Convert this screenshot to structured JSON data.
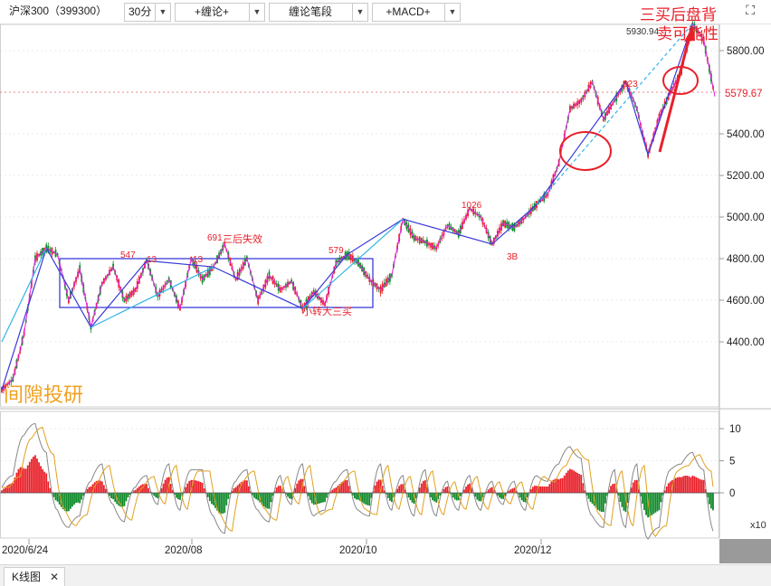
{
  "toolbar": {
    "symbol": "沪深300（399300）",
    "period": "30分",
    "indicator1": "+缠论+",
    "indicator2": "缠论笔段",
    "indicator3": "+MACD+",
    "dropdown_glyph": "▼",
    "expand_glyph": "⛶"
  },
  "tab": {
    "label": "K线图",
    "close": "✕"
  },
  "watermark": "间隙投研",
  "colors": {
    "up": "#e8202a",
    "down": "#0f8a2a",
    "bi": "#e020e0",
    "segment": "#3a3ad8",
    "trend": "#30b4e8",
    "box": "#3b3bdd",
    "annotation": "#e8202a",
    "dif": "#888888",
    "dea": "#e0a020",
    "watermark": "#f0a020"
  },
  "chart_data": [
    {
      "type": "line",
      "name": "price",
      "x_ticks": [
        "2020/6/24",
        "2020/08",
        "2020/10",
        "2020/12"
      ],
      "y_ticks": [
        "4400.00",
        "4600.00",
        "4800.00",
        "5000.00",
        "5200.00",
        "5400.00",
        "5600.00",
        "5800.00"
      ],
      "ylim": [
        4180,
        5960
      ],
      "last_price": "5579.67",
      "series": [
        {
          "values": [
            4170,
            4220,
            4440,
            4800,
            4850,
            4820,
            4600,
            4750,
            4470,
            4680,
            4760,
            4600,
            4650,
            4790,
            4620,
            4700,
            4560,
            4800,
            4700,
            4760,
            4870,
            4700,
            4800,
            4600,
            4720,
            4650,
            4690,
            4560,
            4640,
            4580,
            4780,
            4820,
            4780,
            4700,
            4650,
            4720,
            4990,
            4900,
            4880,
            4850,
            4960,
            4920,
            5040,
            5000,
            4870,
            4970,
            4950,
            5000,
            5060,
            5110,
            5260,
            5520,
            5560,
            5650,
            5470,
            5560,
            5650,
            5520,
            5300,
            5480,
            5600,
            5700,
            5930,
            5850,
            5579.67
          ]
        }
      ]
    },
    {
      "type": "bar",
      "name": "macd",
      "y_ticks": [
        "10",
        "5",
        "0"
      ],
      "ylim": [
        -8,
        12.5
      ],
      "unit_note": "x10",
      "series": [
        {
          "values": [
            1,
            3,
            10,
            12,
            7,
            -3,
            -6,
            -4,
            2,
            5,
            -2,
            -5,
            1,
            3,
            -2,
            5,
            -3,
            4,
            4,
            -4,
            -7,
            2,
            4,
            -3,
            -5,
            3,
            -2,
            5,
            -4,
            -3,
            2,
            4,
            -3,
            -4,
            5,
            -3,
            3,
            -4,
            4,
            -4,
            2,
            -3,
            3,
            -3,
            2,
            -2,
            2,
            -3,
            3,
            2,
            5,
            8,
            6,
            -4,
            -6,
            4,
            -6,
            5,
            -8,
            -6,
            4,
            5,
            7,
            4,
            -7
          ]
        }
      ]
    }
  ],
  "annotations": {
    "box_top": "4800",
    "box_bottom": "4560",
    "labels": [
      "547",
      "13",
      "13",
      "691",
      "三后失效",
      "579",
      "小转大三买",
      "1026",
      "3B",
      "823",
      "5930.94"
    ],
    "big_text_line1": "三买后盘背",
    "big_text_line2": "卖可能性"
  }
}
